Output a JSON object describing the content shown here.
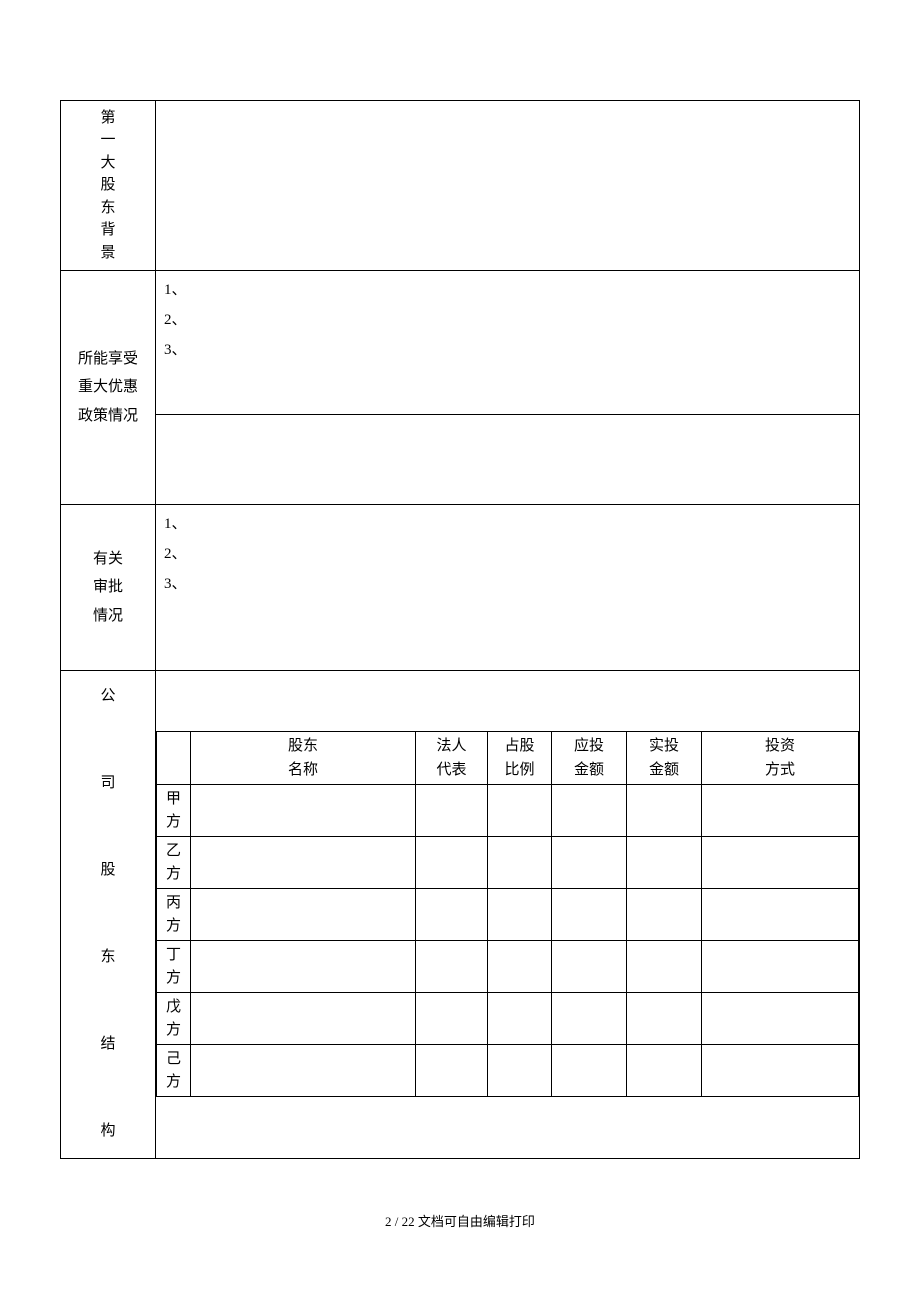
{
  "rows": {
    "shareholder_bg": {
      "label": "第一大股东背景"
    },
    "policies": {
      "label": "所能享受重大优惠政策情况",
      "items": [
        "1、",
        "2、",
        "3、"
      ]
    },
    "approvals": {
      "label": "有关审批情况",
      "items": [
        "1、",
        "2、",
        "3、"
      ]
    },
    "structure": {
      "label": "公司股东结构",
      "headers": {
        "name": "股东名称",
        "rep": "法人代表",
        "ratio": "占股比例",
        "should": "应投金额",
        "actual": "实投金额",
        "method": "投资方式"
      },
      "parties": [
        "甲方",
        "乙方",
        "丙方",
        "丁方",
        "戊方",
        "己方"
      ]
    }
  },
  "footer": {
    "page": "2 / 22",
    "note": "文档可自由编辑打印"
  },
  "colors": {
    "text": "#000000",
    "border": "#000000",
    "bg": "#ffffff"
  }
}
